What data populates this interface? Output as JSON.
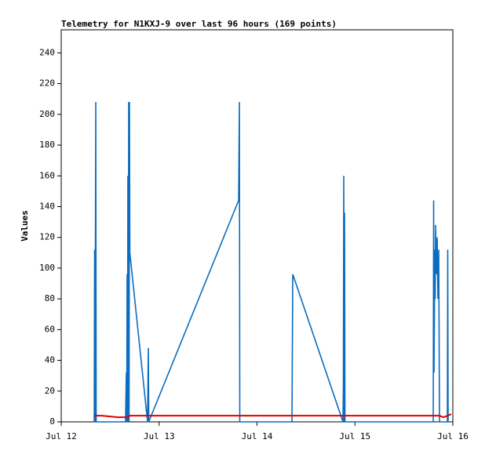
{
  "chart_data": {
    "type": "line",
    "title": "Telemetry for N1KXJ-9 over last 96 hours (169 points)",
    "y_label": "Values",
    "xlim": [
      0,
      4
    ],
    "xticks": [
      {
        "value": 0,
        "label": "Jul 12"
      },
      {
        "value": 1,
        "label": "Jul 13"
      },
      {
        "value": 2,
        "label": "Jul 14"
      },
      {
        "value": 3,
        "label": "Jul 15"
      },
      {
        "value": 4,
        "label": "Jul 16"
      }
    ],
    "ylim": [
      0,
      255
    ],
    "yticks": [
      0,
      20,
      40,
      60,
      80,
      100,
      120,
      140,
      160,
      180,
      200,
      220,
      240
    ],
    "grid": false,
    "series": [
      {
        "color": "#0b6cc0",
        "x": [
          0.337,
          0.341,
          0.345,
          0.353,
          0.357,
          0.657,
          0.665,
          0.669,
          0.673,
          0.677,
          0.681,
          0.685,
          0.689,
          0.693,
          0.697,
          0.701,
          0.882,
          0.89,
          0.894,
          1.812,
          1.82,
          1.824,
          2.357,
          2.365,
          2.878,
          2.882,
          2.886,
          2.89,
          2.894,
          2.898,
          3.8,
          3.804,
          3.808,
          3.816,
          3.82,
          3.824,
          3.832,
          3.84,
          3.848,
          3.856,
          3.864,
          3.944,
          3.948,
          3.952
        ],
        "values": [
          0,
          112,
          0,
          208,
          0,
          0,
          32,
          0,
          96,
          0,
          160,
          0,
          208,
          0,
          208,
          110,
          0,
          48,
          0,
          144,
          208,
          0,
          0,
          96,
          0,
          24,
          160,
          0,
          136,
          0,
          0,
          144,
          32,
          112,
          80,
          128,
          96,
          120,
          80,
          112,
          0,
          0,
          112,
          0
        ]
      },
      {
        "color": "#e00000",
        "x": [
          0.337,
          0.417,
          0.577,
          0.681,
          0.697,
          3.864,
          3.904,
          3.944,
          3.984
        ],
        "values": [
          4,
          4,
          3,
          3,
          4,
          4,
          3,
          4,
          5
        ]
      }
    ]
  }
}
